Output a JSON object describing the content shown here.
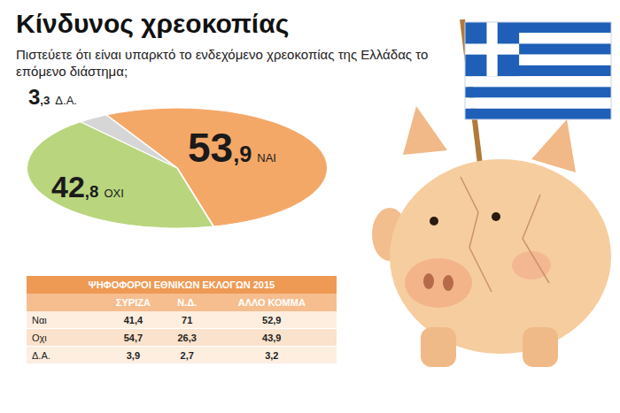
{
  "chart_data": {
    "type": "pie",
    "title": "Κίνδυνος χρεοκοπίας",
    "subtitle": "Πιστεύετε ότι είναι υπαρκτό το ενδεχόμενο χρεοκοπίας της Ελλάδας το επόμενο διάστημα;",
    "categories": [
      "ΝΑΙ",
      "ΟΧΙ",
      "Δ.Α."
    ],
    "values": [
      53.9,
      42.8,
      3.3
    ],
    "value_labels": [
      "53,9",
      "42,8",
      "3,3"
    ],
    "colors": [
      "#f4a868",
      "#b9d57e",
      "#d6d6d6"
    ],
    "data_labels": true
  },
  "table": {
    "title": "ΨΗΦΟΦΟΡΟΙ ΕΘΝΙΚΩΝ ΕΚΛΟΓΩΝ 2015",
    "columns": [
      "ΣΥΡΙΖΑ",
      "Ν.Δ.",
      "ΑΛΛΟ ΚΟΜΜΑ"
    ],
    "rows": [
      {
        "label": "Ναι",
        "values": [
          "41,4",
          "71",
          "52,9"
        ]
      },
      {
        "label": "Οχι",
        "values": [
          "54,7",
          "26,3",
          "43,9"
        ]
      },
      {
        "label": "Δ.Α.",
        "values": [
          "3,9",
          "2,7",
          "3,2"
        ]
      }
    ]
  }
}
